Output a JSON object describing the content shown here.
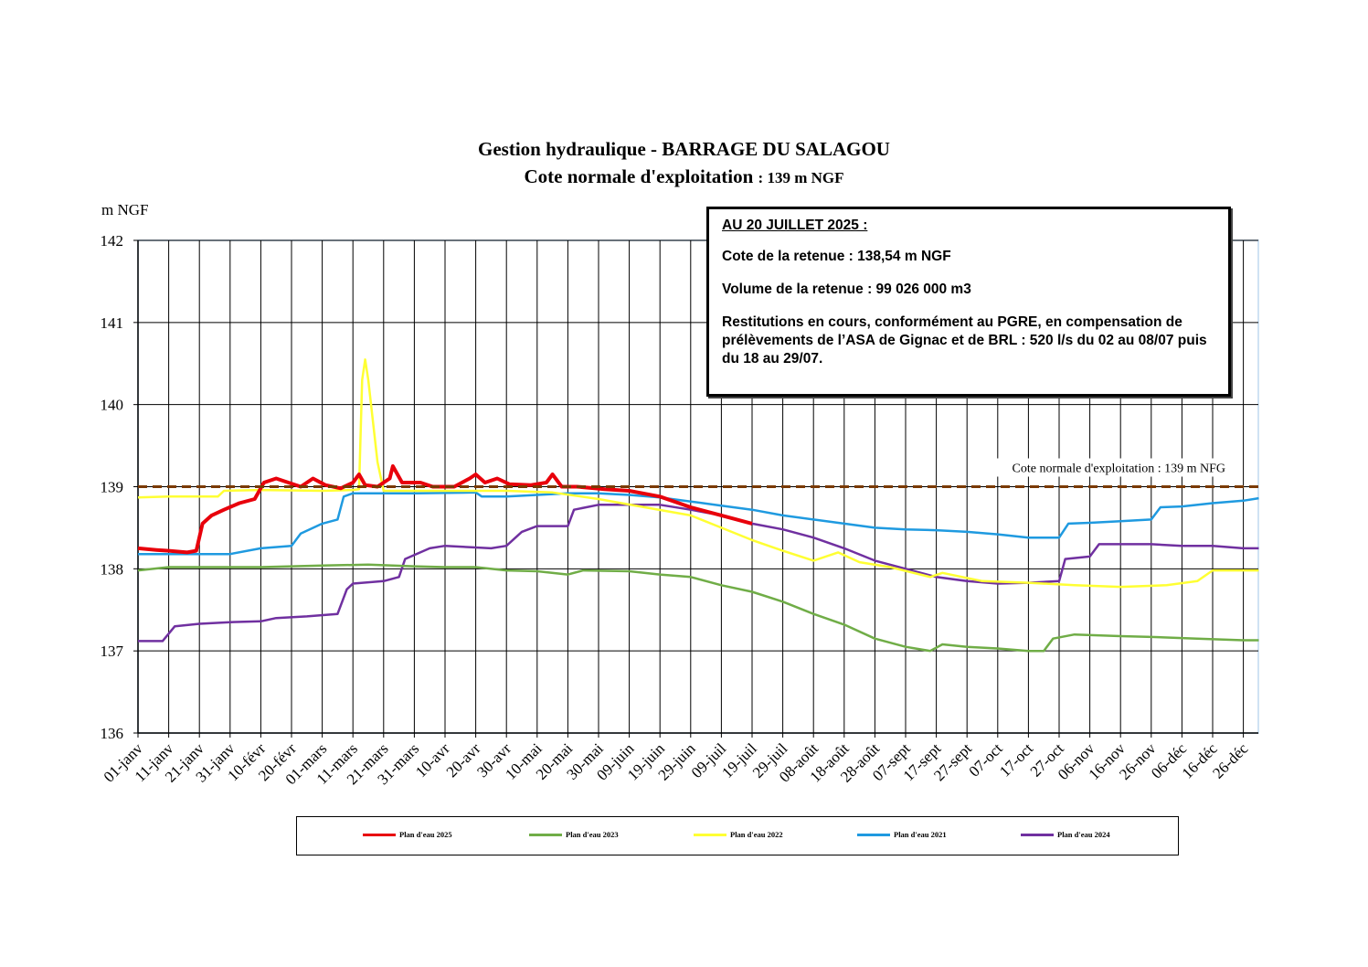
{
  "chart_data": {
    "type": "line",
    "title": "Gestion hydraulique - BARRAGE DU SALAGOU",
    "subtitle": "Cote normale d'exploitation",
    "subtitle_unit": ": 139 m NGF",
    "ylabel": "m NGF",
    "ylim": [
      136,
      142
    ],
    "yticks": [
      "136",
      "137",
      "138",
      "139",
      "140",
      "141",
      "142"
    ],
    "grid": true,
    "legend_position": "bottom",
    "x_tick_labels": [
      "01-janv",
      "11-janv",
      "21-janv",
      "31-janv",
      "10-févr",
      "20-févr",
      "01-mars",
      "11-mars",
      "21-mars",
      "31-mars",
      "10-avr",
      "20-avr",
      "30-avr",
      "10-mai",
      "20-mai",
      "30-mai",
      "09-juin",
      "19-juin",
      "29-juin",
      "09-juil",
      "19-juil",
      "29-juil",
      "08-août",
      "18-août",
      "28-août",
      "07-sept",
      "17-sept",
      "27-sept",
      "07-oct",
      "17-oct",
      "27-oct",
      "06-nov",
      "16-nov",
      "26-nov",
      "06-déc",
      "16-déc",
      "26-déc"
    ],
    "reference_line": {
      "value": 139,
      "label": "Cote normale d'exploitation : 139 m NFG",
      "color": "#7a3a00"
    },
    "series": [
      {
        "name": "Plan d'eau 2025",
        "color": "#e8000b",
        "width": 4,
        "points": [
          [
            0,
            138.25
          ],
          [
            6,
            138.23
          ],
          [
            10,
            138.22
          ],
          [
            16,
            138.2
          ],
          [
            19,
            138.22
          ],
          [
            21,
            138.55
          ],
          [
            24,
            138.65
          ],
          [
            28,
            138.72
          ],
          [
            33,
            138.8
          ],
          [
            38,
            138.85
          ],
          [
            41,
            139.05
          ],
          [
            45,
            139.1
          ],
          [
            49,
            139.05
          ],
          [
            53,
            139.0
          ],
          [
            57,
            139.1
          ],
          [
            61,
            139.02
          ],
          [
            66,
            138.98
          ],
          [
            70,
            139.05
          ],
          [
            72,
            139.15
          ],
          [
            74,
            139.02
          ],
          [
            78,
            139.0
          ],
          [
            82,
            139.1
          ],
          [
            83,
            139.25
          ],
          [
            86,
            139.05
          ],
          [
            92,
            139.05
          ],
          [
            96,
            139.0
          ],
          [
            103,
            139.0
          ],
          [
            108,
            139.1
          ],
          [
            110,
            139.15
          ],
          [
            113,
            139.05
          ],
          [
            117,
            139.1
          ],
          [
            121,
            139.03
          ],
          [
            128,
            139.02
          ],
          [
            133,
            139.05
          ],
          [
            135,
            139.15
          ],
          [
            138,
            139.0
          ],
          [
            143,
            139.0
          ],
          [
            152,
            138.97
          ],
          [
            160,
            138.95
          ],
          [
            170,
            138.88
          ],
          [
            180,
            138.75
          ],
          [
            190,
            138.65
          ],
          [
            200,
            138.55
          ]
        ]
      },
      {
        "name": "Plan d'eau 2023",
        "color": "#70ad47",
        "width": 2.5,
        "points": [
          [
            0,
            137.98
          ],
          [
            10,
            138.02
          ],
          [
            20,
            138.02
          ],
          [
            40,
            138.02
          ],
          [
            60,
            138.04
          ],
          [
            75,
            138.05
          ],
          [
            90,
            138.03
          ],
          [
            100,
            138.02
          ],
          [
            110,
            138.02
          ],
          [
            120,
            137.98
          ],
          [
            130,
            137.97
          ],
          [
            140,
            137.93
          ],
          [
            145,
            137.98
          ],
          [
            160,
            137.97
          ],
          [
            170,
            137.93
          ],
          [
            180,
            137.9
          ],
          [
            190,
            137.8
          ],
          [
            200,
            137.72
          ],
          [
            210,
            137.6
          ],
          [
            220,
            137.45
          ],
          [
            230,
            137.32
          ],
          [
            240,
            137.15
          ],
          [
            250,
            137.05
          ],
          [
            258,
            137.0
          ],
          [
            262,
            137.08
          ],
          [
            270,
            137.05
          ],
          [
            280,
            137.03
          ],
          [
            290,
            137.0
          ],
          [
            295,
            137.0
          ],
          [
            298,
            137.15
          ],
          [
            305,
            137.2
          ],
          [
            320,
            137.18
          ],
          [
            330,
            137.17
          ],
          [
            345,
            137.15
          ],
          [
            360,
            137.13
          ],
          [
            365,
            137.13
          ]
        ]
      },
      {
        "name": "Plan d'eau 2022",
        "color": "#ffff33",
        "width": 2.5,
        "points": [
          [
            0,
            138.87
          ],
          [
            10,
            138.88
          ],
          [
            20,
            138.88
          ],
          [
            26,
            138.88
          ],
          [
            28,
            138.95
          ],
          [
            40,
            138.96
          ],
          [
            60,
            138.95
          ],
          [
            70,
            138.96
          ],
          [
            72,
            138.97
          ],
          [
            73,
            140.3
          ],
          [
            74,
            140.55
          ],
          [
            75,
            140.3
          ],
          [
            78,
            139.3
          ],
          [
            80,
            138.95
          ],
          [
            90,
            138.95
          ],
          [
            105,
            138.95
          ],
          [
            120,
            138.95
          ],
          [
            135,
            138.93
          ],
          [
            150,
            138.85
          ],
          [
            165,
            138.75
          ],
          [
            180,
            138.65
          ],
          [
            190,
            138.5
          ],
          [
            200,
            138.35
          ],
          [
            210,
            138.22
          ],
          [
            220,
            138.1
          ],
          [
            228,
            138.2
          ],
          [
            235,
            138.08
          ],
          [
            245,
            138.02
          ],
          [
            258,
            137.9
          ],
          [
            262,
            137.95
          ],
          [
            275,
            137.85
          ],
          [
            290,
            137.83
          ],
          [
            305,
            137.8
          ],
          [
            320,
            137.78
          ],
          [
            335,
            137.8
          ],
          [
            345,
            137.85
          ],
          [
            350,
            137.98
          ],
          [
            365,
            137.98
          ]
        ]
      },
      {
        "name": "Plan d'eau 2021",
        "color": "#1f9ae0",
        "width": 2.5,
        "points": [
          [
            0,
            138.18
          ],
          [
            10,
            138.18
          ],
          [
            20,
            138.18
          ],
          [
            30,
            138.18
          ],
          [
            40,
            138.25
          ],
          [
            50,
            138.28
          ],
          [
            53,
            138.43
          ],
          [
            60,
            138.55
          ],
          [
            65,
            138.6
          ],
          [
            67,
            138.88
          ],
          [
            70,
            138.92
          ],
          [
            90,
            138.92
          ],
          [
            110,
            138.93
          ],
          [
            112,
            138.88
          ],
          [
            120,
            138.88
          ],
          [
            130,
            138.9
          ],
          [
            140,
            138.92
          ],
          [
            150,
            138.92
          ],
          [
            160,
            138.9
          ],
          [
            170,
            138.87
          ],
          [
            180,
            138.82
          ],
          [
            190,
            138.77
          ],
          [
            200,
            138.72
          ],
          [
            210,
            138.65
          ],
          [
            220,
            138.6
          ],
          [
            230,
            138.55
          ],
          [
            240,
            138.5
          ],
          [
            250,
            138.48
          ],
          [
            260,
            138.47
          ],
          [
            270,
            138.45
          ],
          [
            280,
            138.42
          ],
          [
            290,
            138.38
          ],
          [
            300,
            138.38
          ],
          [
            303,
            138.55
          ],
          [
            310,
            138.56
          ],
          [
            320,
            138.58
          ],
          [
            330,
            138.6
          ],
          [
            333,
            138.75
          ],
          [
            340,
            138.76
          ],
          [
            350,
            138.8
          ],
          [
            360,
            138.83
          ],
          [
            365,
            138.86
          ]
        ]
      },
      {
        "name": "Plan d'eau 2024",
        "color": "#7030a0",
        "width": 2.5,
        "points": [
          [
            0,
            137.12
          ],
          [
            8,
            137.12
          ],
          [
            12,
            137.3
          ],
          [
            20,
            137.33
          ],
          [
            30,
            137.35
          ],
          [
            40,
            137.36
          ],
          [
            45,
            137.4
          ],
          [
            55,
            137.42
          ],
          [
            65,
            137.45
          ],
          [
            68,
            137.75
          ],
          [
            70,
            137.82
          ],
          [
            80,
            137.85
          ],
          [
            85,
            137.9
          ],
          [
            87,
            138.12
          ],
          [
            95,
            138.25
          ],
          [
            100,
            138.28
          ],
          [
            110,
            138.26
          ],
          [
            115,
            138.25
          ],
          [
            120,
            138.28
          ],
          [
            125,
            138.45
          ],
          [
            130,
            138.52
          ],
          [
            140,
            138.52
          ],
          [
            142,
            138.72
          ],
          [
            150,
            138.78
          ],
          [
            160,
            138.78
          ],
          [
            170,
            138.78
          ],
          [
            180,
            138.72
          ],
          [
            190,
            138.65
          ],
          [
            200,
            138.55
          ],
          [
            210,
            138.48
          ],
          [
            220,
            138.38
          ],
          [
            230,
            138.25
          ],
          [
            240,
            138.1
          ],
          [
            250,
            138.0
          ],
          [
            260,
            137.9
          ],
          [
            270,
            137.85
          ],
          [
            280,
            137.82
          ],
          [
            290,
            137.83
          ],
          [
            300,
            137.85
          ],
          [
            302,
            138.12
          ],
          [
            310,
            138.15
          ],
          [
            313,
            138.3
          ],
          [
            320,
            138.3
          ],
          [
            330,
            138.3
          ],
          [
            340,
            138.28
          ],
          [
            350,
            138.28
          ],
          [
            360,
            138.25
          ],
          [
            365,
            138.25
          ]
        ]
      }
    ]
  },
  "info_box": {
    "date": "AU 20 JUILLET 2025 :",
    "cote": "Cote de la retenue : 138,54 m NGF",
    "volume": "Volume de la retenue : 99 026 000 m3",
    "restitutions": "Restitutions en cours, conformément au PGRE, en compensation de prélèvements de l’ASA de Gignac et de BRL : 520 l/s du 02 au 08/07 puis du 18 au 29/07."
  },
  "legend": [
    {
      "label": "Plan d'eau 2025",
      "color": "#e8000b"
    },
    {
      "label": "Plan d'eau 2023",
      "color": "#70ad47"
    },
    {
      "label": "Plan d'eau 2022",
      "color": "#ffff33"
    },
    {
      "label": "Plan d'eau 2021",
      "color": "#1f9ae0"
    },
    {
      "label": "Plan d'eau 2024",
      "color": "#7030a0"
    }
  ]
}
